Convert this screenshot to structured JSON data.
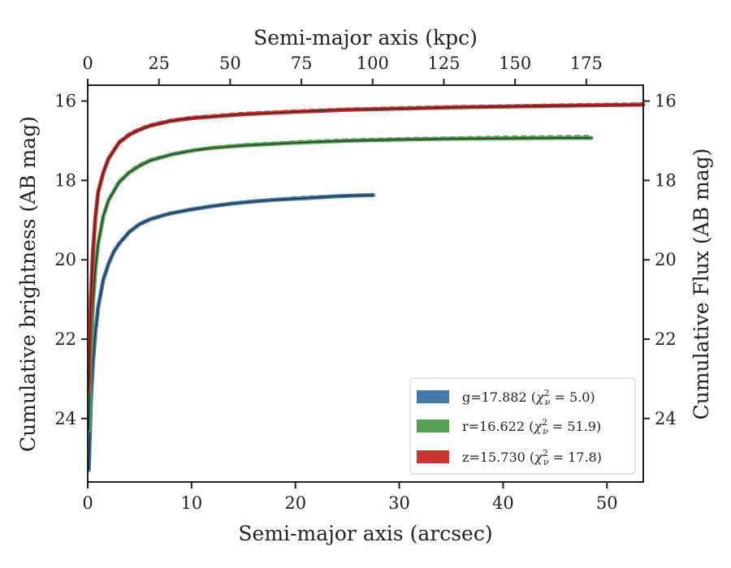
{
  "chart_data": {
    "type": "line",
    "xlabel_bottom": "Semi-major axis (arcsec)",
    "xlabel_top": "Semi-major axis (kpc)",
    "ylabel_left": "Cumulative brightness (AB mag)",
    "ylabel_right": "Cumulative Flux (AB mag)",
    "xlim": [
      0,
      53.5
    ],
    "ylim": [
      25.6,
      15.6
    ],
    "y_inverted": true,
    "x_ticks": [
      0,
      10,
      20,
      30,
      40,
      50
    ],
    "x_tick_labels": [
      "0",
      "10",
      "20",
      "30",
      "40",
      "50"
    ],
    "top_xlim": [
      0,
      195
    ],
    "top_ticks": [
      0,
      25,
      50,
      75,
      100,
      125,
      150,
      175
    ],
    "top_tick_labels": [
      "0",
      "25",
      "50",
      "75",
      "100",
      "125",
      "150",
      "175"
    ],
    "y_ticks": [
      16,
      18,
      20,
      22,
      24
    ],
    "y_tick_labels": [
      "16",
      "18",
      "20",
      "22",
      "24"
    ],
    "grid": false,
    "legend_position": "lower-right",
    "series": [
      {
        "name": "g",
        "color": "#4477aa",
        "legend_text": "g=17.882 (",
        "chi2": "5.0",
        "x": [
          0.1,
          0.3,
          0.5,
          0.75,
          1,
          1.5,
          2,
          2.5,
          3,
          4,
          5,
          6,
          7,
          8,
          10,
          12,
          14,
          16,
          18,
          20,
          22,
          24,
          26,
          27.5
        ],
        "y": [
          25.3,
          23.6,
          22.6,
          21.8,
          21.2,
          20.5,
          20.1,
          19.8,
          19.6,
          19.3,
          19.1,
          18.98,
          18.9,
          18.83,
          18.73,
          18.65,
          18.58,
          18.53,
          18.49,
          18.46,
          18.43,
          18.4,
          18.38,
          18.37
        ]
      },
      {
        "name": "r",
        "color": "#55a055",
        "legend_text": "r=16.622 (",
        "chi2": "51.9",
        "x": [
          0.1,
          0.3,
          0.5,
          0.75,
          1,
          1.5,
          2,
          3,
          4,
          5,
          6,
          8,
          10,
          12,
          15,
          20,
          25,
          30,
          35,
          40,
          45,
          48.5
        ],
        "y": [
          24.3,
          22.3,
          21.1,
          20.2,
          19.6,
          18.9,
          18.5,
          18.05,
          17.8,
          17.63,
          17.5,
          17.35,
          17.25,
          17.18,
          17.12,
          17.05,
          17.0,
          16.97,
          16.95,
          16.94,
          16.93,
          16.93
        ]
      },
      {
        "name": "z",
        "color": "#cc3333",
        "legend_text": "z=15.730 (",
        "chi2": "17.8",
        "x": [
          0.1,
          0.3,
          0.5,
          0.75,
          1,
          1.5,
          2,
          3,
          4,
          5,
          6,
          8,
          10,
          15,
          20,
          25,
          30,
          35,
          40,
          45,
          50,
          53.5
        ],
        "y": [
          23.3,
          21.0,
          19.8,
          18.9,
          18.3,
          17.8,
          17.45,
          17.05,
          16.85,
          16.72,
          16.62,
          16.5,
          16.43,
          16.33,
          16.27,
          16.22,
          16.19,
          16.16,
          16.14,
          16.12,
          16.1,
          16.09
        ]
      }
    ],
    "model_curves": [
      {
        "series": "g",
        "color": "#777777",
        "style": "dashed",
        "x": [
          0.1,
          0.3,
          0.5,
          0.75,
          1,
          1.5,
          2,
          2.5,
          3,
          4,
          5,
          6,
          7,
          8,
          10,
          12,
          14,
          16,
          18,
          20,
          22,
          24,
          26,
          27.5
        ],
        "y": [
          25.2,
          23.5,
          22.5,
          21.75,
          21.15,
          20.45,
          20.05,
          19.77,
          19.57,
          19.28,
          19.08,
          18.96,
          18.87,
          18.8,
          18.7,
          18.62,
          18.55,
          18.5,
          18.46,
          18.42,
          18.39,
          18.37,
          18.35,
          18.33
        ]
      },
      {
        "series": "r",
        "color": "#777777",
        "style": "dashed",
        "x": [
          0.1,
          0.3,
          0.5,
          0.75,
          1,
          1.5,
          2,
          3,
          4,
          5,
          6,
          8,
          10,
          12,
          15,
          20,
          25,
          30,
          35,
          40,
          45,
          48.5
        ],
        "y": [
          24.2,
          22.2,
          21.0,
          20.15,
          19.55,
          18.85,
          18.45,
          18.0,
          17.75,
          17.58,
          17.46,
          17.32,
          17.22,
          17.15,
          17.08,
          17.01,
          16.96,
          16.93,
          16.91,
          16.89,
          16.88,
          16.87
        ]
      },
      {
        "series": "z",
        "color": "#777777",
        "style": "dashed",
        "x": [
          0.1,
          0.3,
          0.5,
          0.75,
          1,
          1.5,
          2,
          3,
          4,
          5,
          6,
          8,
          10,
          15,
          20,
          25,
          30,
          35,
          40,
          45,
          50,
          53.5
        ],
        "y": [
          23.2,
          20.9,
          19.7,
          18.85,
          18.25,
          17.75,
          17.4,
          17.0,
          16.8,
          16.68,
          16.58,
          16.46,
          16.39,
          16.29,
          16.23,
          16.18,
          16.15,
          16.12,
          16.1,
          16.08,
          16.06,
          16.05
        ]
      }
    ]
  }
}
